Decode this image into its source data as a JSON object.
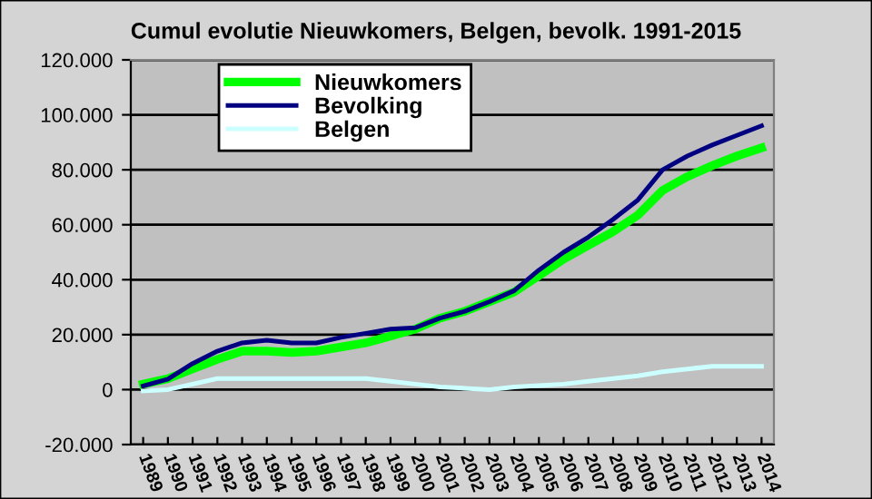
{
  "chart_data": {
    "type": "line",
    "title": "Cumul evolutie Nieuwkomers, Belgen, bevolk. 1991-2015",
    "categories": [
      "1989",
      "1990",
      "1991",
      "1992",
      "1993",
      "1994",
      "1995",
      "1996",
      "1997",
      "1998",
      "1999",
      "2000",
      "2001",
      "2002",
      "2003",
      "2004",
      "2005",
      "2006",
      "2007",
      "2008",
      "2009",
      "2010",
      "2011",
      "2012",
      "2013",
      "2014"
    ],
    "series": [
      {
        "name": "Nieuwkomers",
        "color": "#00ff00",
        "values": [
          2000,
          4000,
          7500,
          11000,
          14000,
          14000,
          13500,
          14000,
          15500,
          17000,
          19500,
          22000,
          26000,
          28500,
          32000,
          35500,
          41500,
          47500,
          52500,
          57500,
          63500,
          72500,
          77500,
          81500,
          85000,
          88000
        ]
      },
      {
        "name": "Bevolking",
        "color": "#000080",
        "values": [
          1300,
          3800,
          9500,
          14000,
          17000,
          18000,
          17000,
          17000,
          19000,
          20500,
          22000,
          22500,
          26000,
          28500,
          32000,
          36000,
          43500,
          50000,
          55500,
          62000,
          69000,
          80000,
          85000,
          89000,
          92500,
          96000
        ]
      },
      {
        "name": "Belgen",
        "color": "#ccffff",
        "values": [
          -500,
          0,
          2000,
          4000,
          4000,
          4000,
          4000,
          4000,
          4000,
          4000,
          3000,
          2000,
          1000,
          500,
          0,
          1000,
          1500,
          2000,
          3000,
          4000,
          5000,
          6500,
          7500,
          8500,
          8500,
          8500
        ]
      }
    ],
    "ylim": [
      -20000,
      120000
    ],
    "yticks": [
      {
        "value": -20000,
        "label": "-20.000"
      },
      {
        "value": 0,
        "label": "0"
      },
      {
        "value": 20000,
        "label": "20.000"
      },
      {
        "value": 40000,
        "label": "40.000"
      },
      {
        "value": 60000,
        "label": "60.000"
      },
      {
        "value": 80000,
        "label": "80.000"
      },
      {
        "value": 100000,
        "label": "100.000"
      },
      {
        "value": 120000,
        "label": "120.000"
      }
    ],
    "grid": "y",
    "legend": "top left",
    "marker": "none",
    "line_style": "solid"
  }
}
